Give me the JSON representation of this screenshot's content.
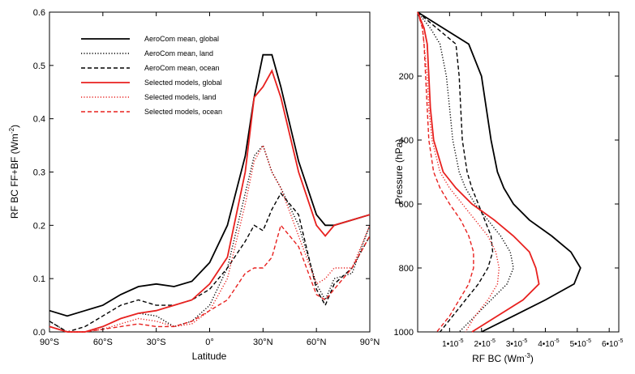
{
  "chart_data": [
    {
      "type": "line",
      "xlabel": "Latitude",
      "ylabel": "RF BC FF+BF (Wm",
      "ylabel_sup": "-2",
      "ylabel_close": ")",
      "xlim": [
        -90,
        90
      ],
      "ylim": [
        0,
        0.6
      ],
      "x_ticks": [
        -90,
        -60,
        -30,
        0,
        30,
        60,
        90
      ],
      "x_tick_labels": [
        "90°S",
        "60°S",
        "30°S",
        "0°",
        "30°N",
        "60°N",
        "90°N"
      ],
      "y_ticks": [
        0,
        0.1,
        0.2,
        0.3,
        0.4,
        0.5,
        0.6
      ],
      "y_tick_labels": [
        "0.0",
        "0.1",
        "0.2",
        "0.3",
        "0.4",
        "0.5",
        "0.6"
      ],
      "legend_position": "top-left",
      "x": [
        -90,
        -80,
        -70,
        -60,
        -50,
        -40,
        -30,
        -20,
        -10,
        0,
        10,
        20,
        25,
        30,
        35,
        40,
        50,
        60,
        65,
        70,
        80,
        90
      ],
      "series": [
        {
          "name": "AeroCom mean, global",
          "color": "#000000",
          "dash": "solid",
          "values": [
            0.04,
            0.03,
            0.04,
            0.05,
            0.07,
            0.085,
            0.09,
            0.085,
            0.095,
            0.13,
            0.2,
            0.33,
            0.44,
            0.52,
            0.52,
            0.46,
            0.32,
            0.22,
            0.2,
            0.2,
            0.21,
            0.22
          ]
        },
        {
          "name": "AeroCom mean, land",
          "color": "#000000",
          "dash": "dotted",
          "values": [
            0.02,
            0.0,
            0.0,
            0.01,
            0.025,
            0.035,
            0.03,
            0.01,
            0.02,
            0.05,
            0.12,
            0.26,
            0.33,
            0.35,
            0.3,
            0.27,
            0.2,
            0.09,
            0.06,
            0.1,
            0.11,
            0.2
          ]
        },
        {
          "name": "AeroCom mean, ocean",
          "color": "#000000",
          "dash": "dashed",
          "values": [
            0.02,
            0.0,
            0.01,
            0.03,
            0.05,
            0.06,
            0.05,
            0.05,
            0.06,
            0.08,
            0.12,
            0.17,
            0.2,
            0.19,
            0.23,
            0.26,
            0.22,
            0.08,
            0.05,
            0.09,
            0.12,
            0.18
          ]
        },
        {
          "name": "Selected models, global",
          "color": "#e8211f",
          "dash": "solid",
          "values": [
            0.01,
            0.0,
            0.0,
            0.01,
            0.025,
            0.035,
            0.04,
            0.05,
            0.06,
            0.09,
            0.14,
            0.3,
            0.44,
            0.46,
            0.49,
            0.44,
            0.3,
            0.2,
            0.18,
            0.2,
            0.21,
            0.22
          ]
        },
        {
          "name": "Selected models, land",
          "color": "#e8211f",
          "dash": "dotted",
          "values": [
            0.01,
            0.0,
            0.0,
            0.005,
            0.015,
            0.025,
            0.02,
            0.01,
            0.015,
            0.04,
            0.1,
            0.24,
            0.32,
            0.35,
            0.3,
            0.27,
            0.18,
            0.09,
            0.1,
            0.12,
            0.12,
            0.2
          ]
        },
        {
          "name": "Selected models, ocean",
          "color": "#e8211f",
          "dash": "dashed",
          "values": [
            0.01,
            0.0,
            0.0,
            0.005,
            0.01,
            0.015,
            0.01,
            0.01,
            0.02,
            0.04,
            0.06,
            0.11,
            0.12,
            0.12,
            0.14,
            0.2,
            0.16,
            0.07,
            0.06,
            0.08,
            0.12,
            0.18
          ]
        }
      ]
    },
    {
      "type": "line",
      "xlabel": "RF BC (Wm",
      "xlabel_sup": "-3",
      "xlabel_close": ")",
      "ylabel": "Pressure (hPa)",
      "ylim": [
        0,
        1000
      ],
      "y_inverted": true,
      "xlim": [
        0,
        6.3e-05
      ],
      "x_ticks": [
        1e-05,
        2e-05,
        3e-05,
        4e-05,
        5e-05,
        6e-05
      ],
      "x_tick_labels": [
        "1•10",
        "2•10",
        "3•10",
        "4•10",
        "5•10",
        "6•10"
      ],
      "x_tick_exponent": "-5",
      "y_ticks": [
        200,
        400,
        600,
        800,
        1000
      ],
      "y_tick_labels": [
        "200",
        "400",
        "600",
        "800",
        "1000"
      ],
      "pressure": [
        0,
        50,
        100,
        200,
        300,
        400,
        500,
        550,
        600,
        650,
        700,
        750,
        800,
        850,
        900,
        950,
        1000
      ],
      "series": [
        {
          "name": "AeroCom mean, global",
          "color": "#000000",
          "dash": "solid",
          "values": [
            0.0,
            8e-06,
            1.6e-05,
            2e-05,
            2.15e-05,
            2.3e-05,
            2.5e-05,
            2.7e-05,
            3e-05,
            3.5e-05,
            4.2e-05,
            4.8e-05,
            5.1e-05,
            4.9e-05,
            4e-05,
            3e-05,
            2e-05
          ]
        },
        {
          "name": "AeroCom mean, land",
          "color": "#000000",
          "dash": "dotted",
          "values": [
            0.0,
            4e-06,
            7e-06,
            9e-06,
            1e-05,
            1.1e-05,
            1.3e-05,
            1.5e-05,
            1.8e-05,
            2.2e-05,
            2.6e-05,
            2.9e-05,
            3e-05,
            2.8e-05,
            2.3e-05,
            1.8e-05,
            1.3e-05
          ]
        },
        {
          "name": "AeroCom mean, ocean",
          "color": "#000000",
          "dash": "dashed",
          "values": [
            0.0,
            6e-06,
            1.2e-05,
            1.3e-05,
            1.35e-05,
            1.4e-05,
            1.55e-05,
            1.7e-05,
            1.9e-05,
            2.1e-05,
            2.3e-05,
            2.35e-05,
            2.2e-05,
            1.9e-05,
            1.5e-05,
            1.1e-05,
            7e-06
          ]
        },
        {
          "name": "Selected models, global",
          "color": "#e8211f",
          "dash": "solid",
          "values": [
            0.0,
            2e-06,
            3e-06,
            3.5e-06,
            4e-06,
            5e-06,
            8e-06,
            1.2e-05,
            1.7e-05,
            2.4e-05,
            3e-05,
            3.5e-05,
            3.7e-05,
            3.8e-05,
            3.3e-05,
            2.5e-05,
            1.7e-05
          ]
        },
        {
          "name": "Selected models, land",
          "color": "#e8211f",
          "dash": "dotted",
          "values": [
            0.0,
            1.5e-06,
            2e-06,
            3e-06,
            3.5e-06,
            4.5e-06,
            7e-06,
            1e-05,
            1.4e-05,
            1.8e-05,
            2.2e-05,
            2.45e-05,
            2.55e-05,
            2.5e-05,
            2.2e-05,
            1.8e-05,
            1.5e-05
          ]
        },
        {
          "name": "Selected models, ocean",
          "color": "#e8211f",
          "dash": "dashed",
          "values": [
            0.0,
            1.5e-06,
            2e-06,
            2.5e-06,
            3e-06,
            3.5e-06,
            5e-06,
            7e-06,
            1e-05,
            1.35e-05,
            1.6e-05,
            1.75e-05,
            1.75e-05,
            1.6e-05,
            1.3e-05,
            1e-05,
            6e-06
          ]
        }
      ]
    }
  ]
}
